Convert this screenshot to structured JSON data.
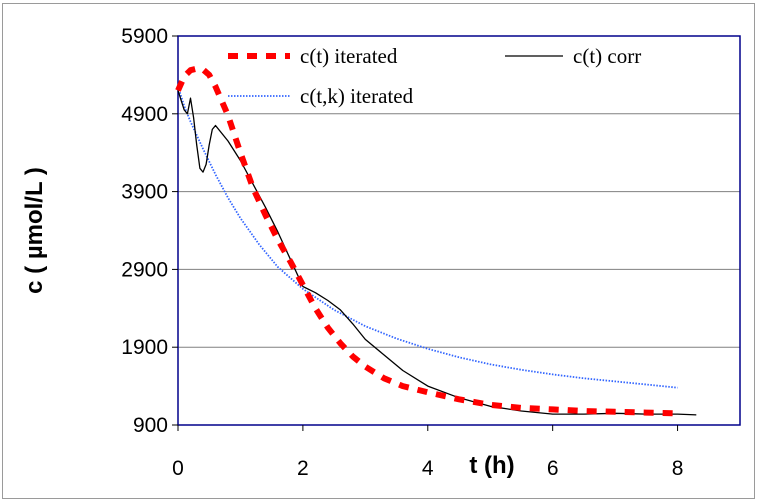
{
  "chart_data": {
    "type": "line",
    "title": "",
    "xlabel": "t (h)",
    "ylabel": "c ( µmol/L )",
    "xlim": [
      0,
      9
    ],
    "ylim": [
      900,
      5900
    ],
    "x_ticks": [
      0,
      2,
      4,
      6,
      8
    ],
    "x_tick_labels": [
      "0",
      "2",
      "4",
      "6",
      "8"
    ],
    "y_ticks": [
      900,
      1900,
      2900,
      3900,
      4900,
      5900
    ],
    "y_tick_labels": [
      "900",
      "1900",
      "2900",
      "3900",
      "4900",
      "5900"
    ],
    "grid": "horizontal",
    "legend_position": "top",
    "series": [
      {
        "name": "c(t) iterated",
        "style": "dashed",
        "color": "#ff0000",
        "x": [
          0,
          0.1,
          0.2,
          0.3,
          0.4,
          0.5,
          0.6,
          0.8,
          1.0,
          1.2,
          1.4,
          1.6,
          1.8,
          2.0,
          2.2,
          2.4,
          2.6,
          2.8,
          3.0,
          3.3,
          3.6,
          4.0,
          4.5,
          5.0,
          5.5,
          6.0,
          6.5,
          7.0,
          7.5,
          8.0
        ],
        "y": [
          5200,
          5380,
          5460,
          5480,
          5470,
          5400,
          5250,
          4880,
          4400,
          3950,
          3600,
          3280,
          3000,
          2700,
          2400,
          2150,
          1950,
          1780,
          1650,
          1500,
          1400,
          1320,
          1230,
          1160,
          1120,
          1100,
          1080,
          1070,
          1060,
          1050
        ]
      },
      {
        "name": "c(t) corr",
        "style": "solid",
        "color": "#000000",
        "x": [
          0,
          0.1,
          0.15,
          0.2,
          0.25,
          0.3,
          0.35,
          0.4,
          0.45,
          0.5,
          0.55,
          0.6,
          0.8,
          1.0,
          1.2,
          1.4,
          1.6,
          1.8,
          2.0,
          2.2,
          2.4,
          2.6,
          2.8,
          3.0,
          3.3,
          3.6,
          4.0,
          4.5,
          5.0,
          5.5,
          6.0,
          6.5,
          7.0,
          7.5,
          8.0,
          8.3
        ],
        "y": [
          5200,
          4950,
          4900,
          5100,
          4850,
          4500,
          4200,
          4150,
          4250,
          4500,
          4700,
          4750,
          4550,
          4300,
          4000,
          3700,
          3380,
          3030,
          2680,
          2600,
          2500,
          2380,
          2200,
          2000,
          1800,
          1600,
          1400,
          1250,
          1140,
          1080,
          1040,
          1040,
          1050,
          1040,
          1040,
          1030
        ]
      },
      {
        "name": "c(t,k) iterated",
        "style": "dotted",
        "color": "#3366ff",
        "x": [
          0,
          0.1,
          0.2,
          0.4,
          0.6,
          0.8,
          1.0,
          1.3,
          1.6,
          2.0,
          2.5,
          3.0,
          3.5,
          4.0,
          4.5,
          5.0,
          5.5,
          6.0,
          6.5,
          7.0,
          7.5,
          8.0
        ],
        "y": [
          5250,
          5000,
          4800,
          4450,
          4120,
          3820,
          3560,
          3220,
          2930,
          2650,
          2380,
          2170,
          2010,
          1880,
          1770,
          1680,
          1610,
          1550,
          1500,
          1460,
          1420,
          1380
        ]
      }
    ]
  }
}
